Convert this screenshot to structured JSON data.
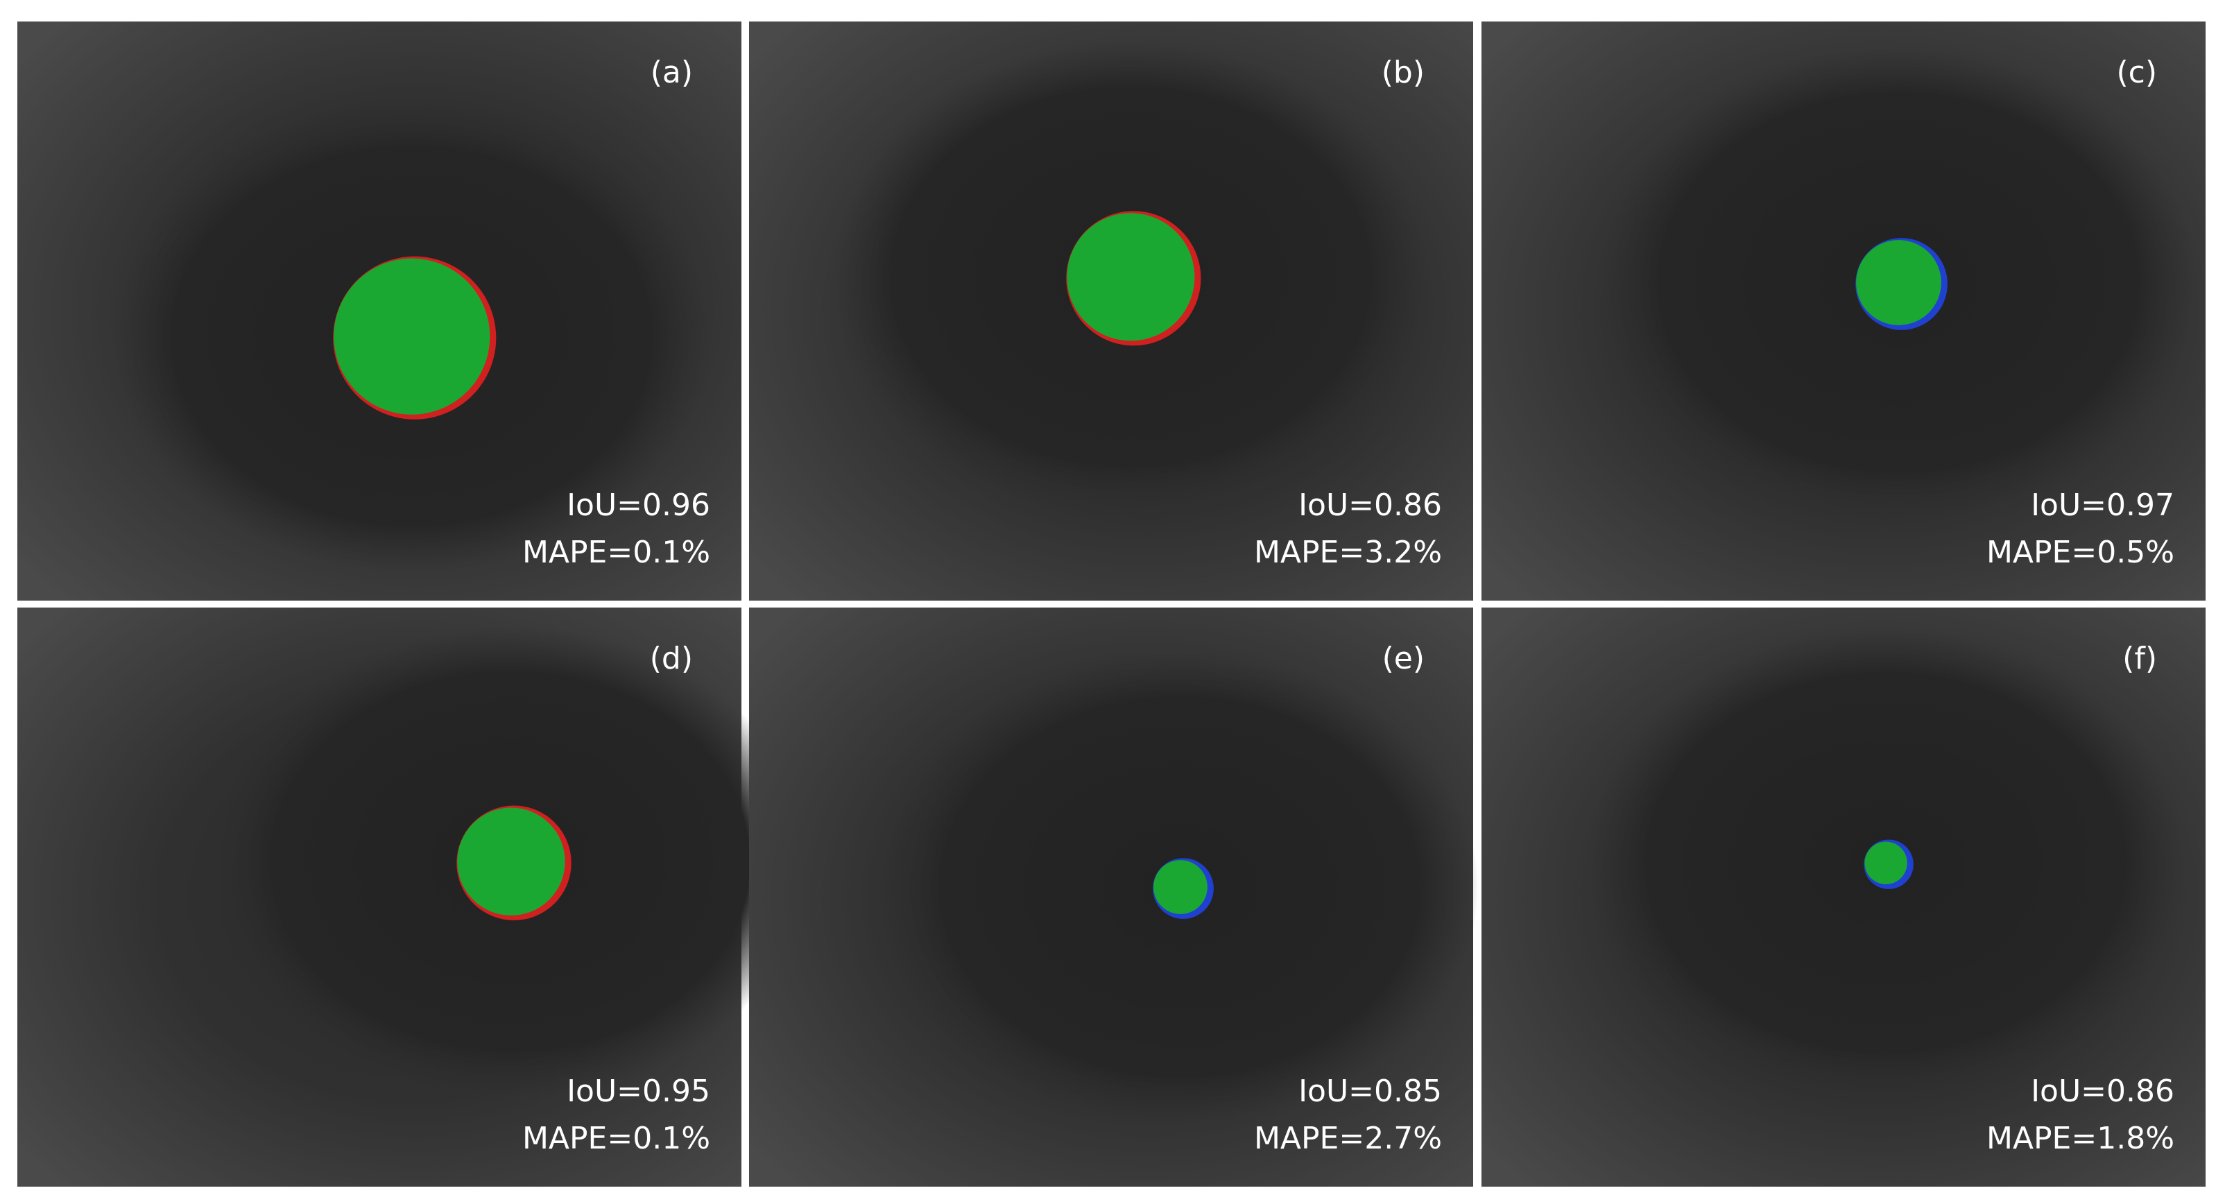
{
  "panels": [
    {
      "label": "(a)",
      "iou": "IoU=0.96",
      "mape": "MAPE=0.1%"
    },
    {
      "label": "(b)",
      "iou": "IoU=0.86",
      "mape": "MAPE=3.2%"
    },
    {
      "label": "(c)",
      "iou": "IoU=0.97",
      "mape": "MAPE=0.5%"
    },
    {
      "label": "(d)",
      "iou": "IoU=0.95",
      "mape": "MAPE=0.1%"
    },
    {
      "label": "(e)",
      "iou": "IoU=0.85",
      "mape": "MAPE=2.7%"
    },
    {
      "label": "(f)",
      "iou": "IoU=0.86",
      "mape": "MAPE=1.8%"
    }
  ]
}
